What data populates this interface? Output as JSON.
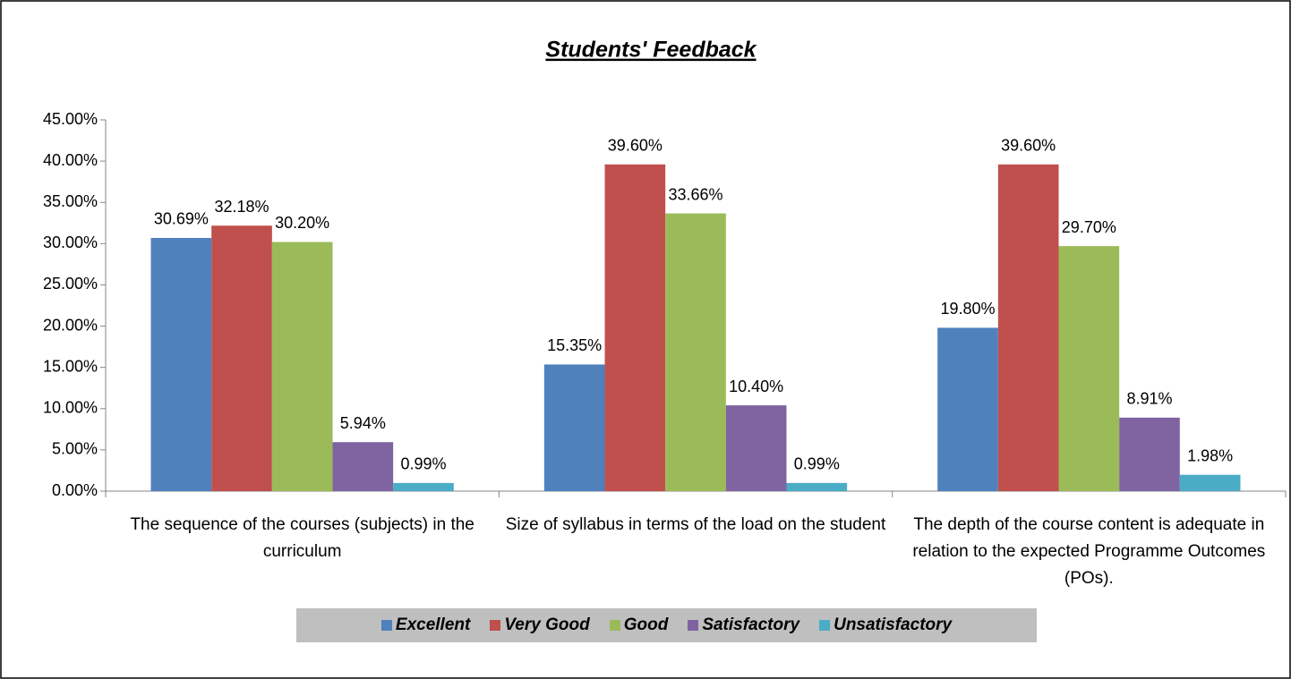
{
  "chart_data": {
    "type": "bar",
    "title": "Students' Feedback",
    "categories": [
      "The sequence of the courses (subjects) in the curriculum",
      "Size of syllabus in terms of the load on the student",
      "The depth of the course content is adequate in relation to the expected Programme Outcomes (POs)."
    ],
    "series": [
      {
        "name": "Excellent",
        "color": "#4f81bd",
        "values": [
          30.69,
          15.35,
          19.8
        ],
        "value_labels": [
          "30.69%",
          "15.35%",
          "19.80%"
        ]
      },
      {
        "name": "Very Good",
        "color": "#c0504d",
        "values": [
          32.18,
          39.6,
          39.6
        ],
        "value_labels": [
          "32.18%",
          "39.60%",
          "39.60%"
        ]
      },
      {
        "name": "Good",
        "color": "#9bbb59",
        "values": [
          30.2,
          33.66,
          29.7
        ],
        "value_labels": [
          "30.20%",
          "33.66%",
          "29.70%"
        ]
      },
      {
        "name": "Satisfactory",
        "color": "#8064a2",
        "values": [
          5.94,
          10.4,
          8.91
        ],
        "value_labels": [
          "5.94%",
          "10.40%",
          "8.91%"
        ]
      },
      {
        "name": "Unsatisfactory",
        "color": "#4bacc6",
        "values": [
          0.99,
          0.99,
          1.98
        ],
        "value_labels": [
          "0.99%",
          "0.99%",
          "1.98%"
        ]
      }
    ],
    "ylim": [
      0,
      45
    ],
    "yticks": [
      {
        "value": 0,
        "label": "0.00%"
      },
      {
        "value": 5,
        "label": "5.00%"
      },
      {
        "value": 10,
        "label": "10.00%"
      },
      {
        "value": 15,
        "label": "15.00%"
      },
      {
        "value": 20,
        "label": "20.00%"
      },
      {
        "value": 25,
        "label": "25.00%"
      },
      {
        "value": 30,
        "label": "30.00%"
      },
      {
        "value": 35,
        "label": "35.00%"
      },
      {
        "value": 40,
        "label": "40.00%"
      },
      {
        "value": 45,
        "label": "45.00%"
      }
    ],
    "legend": "bottom"
  }
}
